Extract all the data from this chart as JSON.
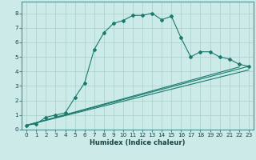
{
  "xlabel": "Humidex (Indice chaleur)",
  "bg_color": "#cceae8",
  "grid_color": "#aed4d0",
  "line_color": "#1a7a6e",
  "xlim": [
    -0.5,
    23.5
  ],
  "ylim": [
    0,
    8.8
  ],
  "xticks": [
    0,
    1,
    2,
    3,
    4,
    5,
    6,
    7,
    8,
    9,
    10,
    11,
    12,
    13,
    14,
    15,
    16,
    17,
    18,
    19,
    20,
    21,
    22,
    23
  ],
  "yticks": [
    0,
    1,
    2,
    3,
    4,
    5,
    6,
    7,
    8
  ],
  "series": [
    [
      0,
      0.3
    ],
    [
      1,
      0.4
    ],
    [
      2,
      0.85
    ],
    [
      3,
      1.0
    ],
    [
      4,
      1.15
    ],
    [
      5,
      2.2
    ],
    [
      6,
      3.2
    ],
    [
      7,
      5.5
    ],
    [
      8,
      6.65
    ],
    [
      9,
      7.3
    ],
    [
      10,
      7.5
    ],
    [
      11,
      7.85
    ],
    [
      12,
      7.85
    ],
    [
      13,
      8.0
    ],
    [
      14,
      7.55
    ],
    [
      15,
      7.8
    ],
    [
      16,
      6.3
    ],
    [
      17,
      5.0
    ],
    [
      18,
      5.35
    ],
    [
      19,
      5.35
    ],
    [
      20,
      5.0
    ],
    [
      21,
      4.85
    ],
    [
      22,
      4.5
    ],
    [
      23,
      4.35
    ]
  ],
  "line2": [
    [
      0,
      0.3
    ],
    [
      23,
      4.35
    ]
  ],
  "line3": [
    [
      0,
      0.3
    ],
    [
      22,
      4.3
    ]
  ],
  "line4": [
    [
      0,
      0.3
    ],
    [
      23,
      4.1
    ]
  ],
  "spine_color": "#4a9090",
  "tick_color": "#1a4040",
  "xlabel_fontsize": 6.0,
  "tick_fontsize": 5.2
}
